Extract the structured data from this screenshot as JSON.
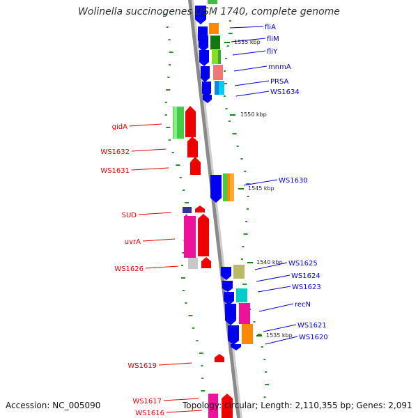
{
  "title": "Wolinella succinogenes DSM 1740, complete genome",
  "footer": {
    "accession": "Accession: NC_005090",
    "summary": "Topology: circular; Length: 2,110,355 bp; Genes: 2,091"
  },
  "colors": {
    "forward_label": "#0000cc",
    "reverse_label": "#dd0000",
    "backbone": "#888888",
    "gc_dots": "#2e8b2e"
  },
  "scale_labels": [
    "1555 kbp",
    "1550 kbp",
    "1545 kbp",
    "1540 kbp",
    "1535 kbp"
  ],
  "forward_genes": [
    "fliA",
    "fliM",
    "fliY",
    "mnmA",
    "PRSA",
    "WS1634",
    "WS1630",
    "WS1625",
    "WS1624",
    "WS1623",
    "recN",
    "WS1621",
    "WS1620"
  ],
  "reverse_genes": [
    "gidA",
    "WS1632",
    "WS1631",
    "SUD",
    "uvrA",
    "WS1626",
    "WS1619",
    "WS1617",
    "WS1616"
  ]
}
